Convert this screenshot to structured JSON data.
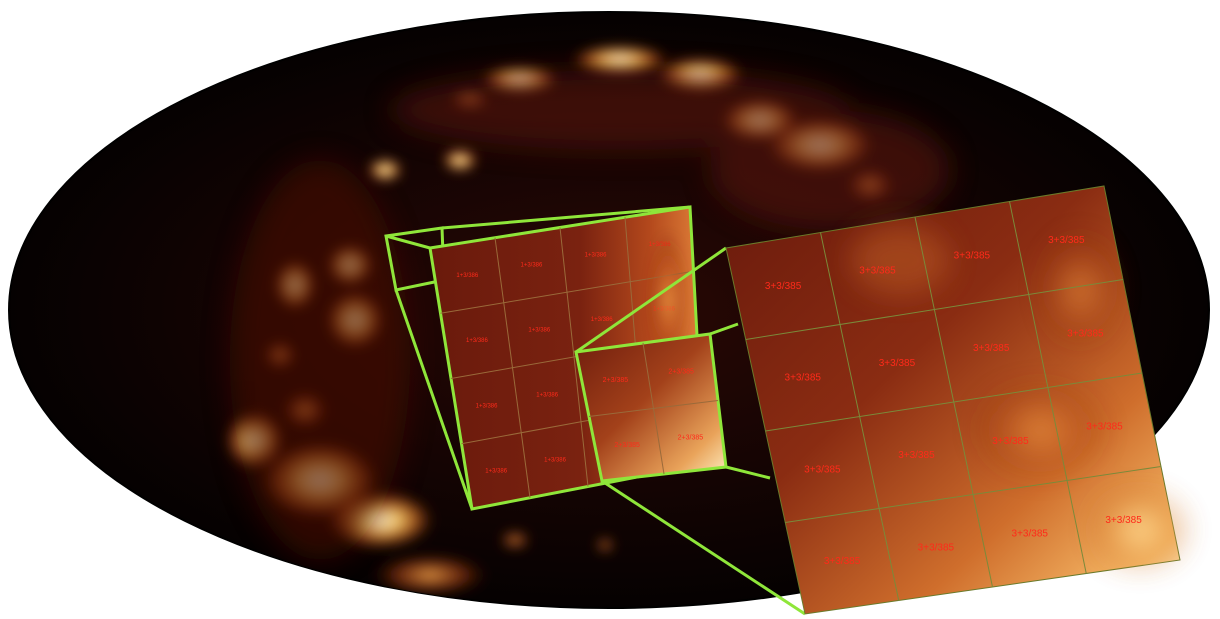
{
  "figure": {
    "colors": {
      "background": "#ffffff",
      "sky_dark": "#0a0202",
      "emission_hot": "#fff4c8",
      "emission_mid": "#e0701e",
      "emission_dim": "#5a1408",
      "zoom_outline": "#8fe63a",
      "grid_line": "#9a6a3a",
      "cell_label": "#ff2a1a"
    },
    "levels": [
      {
        "name": "zoom-level-1",
        "cell_labels": [
          "1+3/386",
          "1+3/386",
          "1+3/386",
          "1+3/386",
          "1+3/386",
          "1+3/386",
          "1+3/386",
          "1+3/386",
          "1+3/386",
          "1+3/386",
          "1+3/386",
          "1+3/386",
          "1+3/386",
          "1+3/386",
          "1+3/386",
          "1+3/386"
        ]
      },
      {
        "name": "zoom-level-2",
        "cell_labels": [
          "2+3/385",
          "2+3/385",
          "2+3/385",
          "2+3/385"
        ]
      },
      {
        "name": "zoom-level-3",
        "cell_labels": [
          "3+3/385",
          "3+3/385",
          "3+3/385",
          "3+3/385",
          "3+3/385",
          "3+3/385",
          "3+3/385",
          "3+3/385",
          "3+3/385",
          "3+3/385",
          "3+3/385",
          "3+3/385",
          "3+3/385",
          "3+3/385",
          "3+3/385",
          "3+3/385"
        ]
      }
    ]
  }
}
